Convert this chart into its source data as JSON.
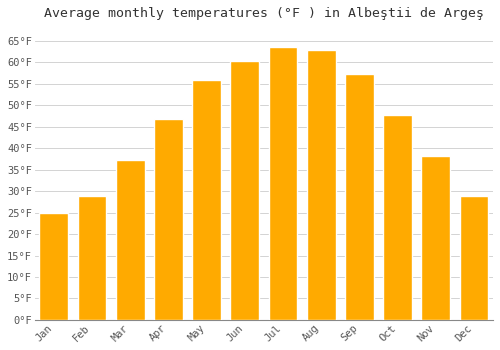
{
  "title": "Average monthly temperatures (°F ) in Albeştii de Argeş",
  "months": [
    "Jan",
    "Feb",
    "Mar",
    "Apr",
    "May",
    "Jun",
    "Jul",
    "Aug",
    "Sep",
    "Oct",
    "Nov",
    "Dec"
  ],
  "values": [
    24.8,
    28.8,
    37.2,
    46.8,
    55.8,
    60.3,
    63.5,
    62.8,
    57.2,
    47.8,
    38.3,
    28.9
  ],
  "bar_color": "#FFAA00",
  "bar_edge_color": "#FFFFFF",
  "ylim": [
    0,
    68
  ],
  "yticks": [
    0,
    5,
    10,
    15,
    20,
    25,
    30,
    35,
    40,
    45,
    50,
    55,
    60,
    65
  ],
  "background_color": "#FFFFFF",
  "grid_color": "#CCCCCC",
  "title_fontsize": 9.5,
  "tick_fontsize": 7.5
}
